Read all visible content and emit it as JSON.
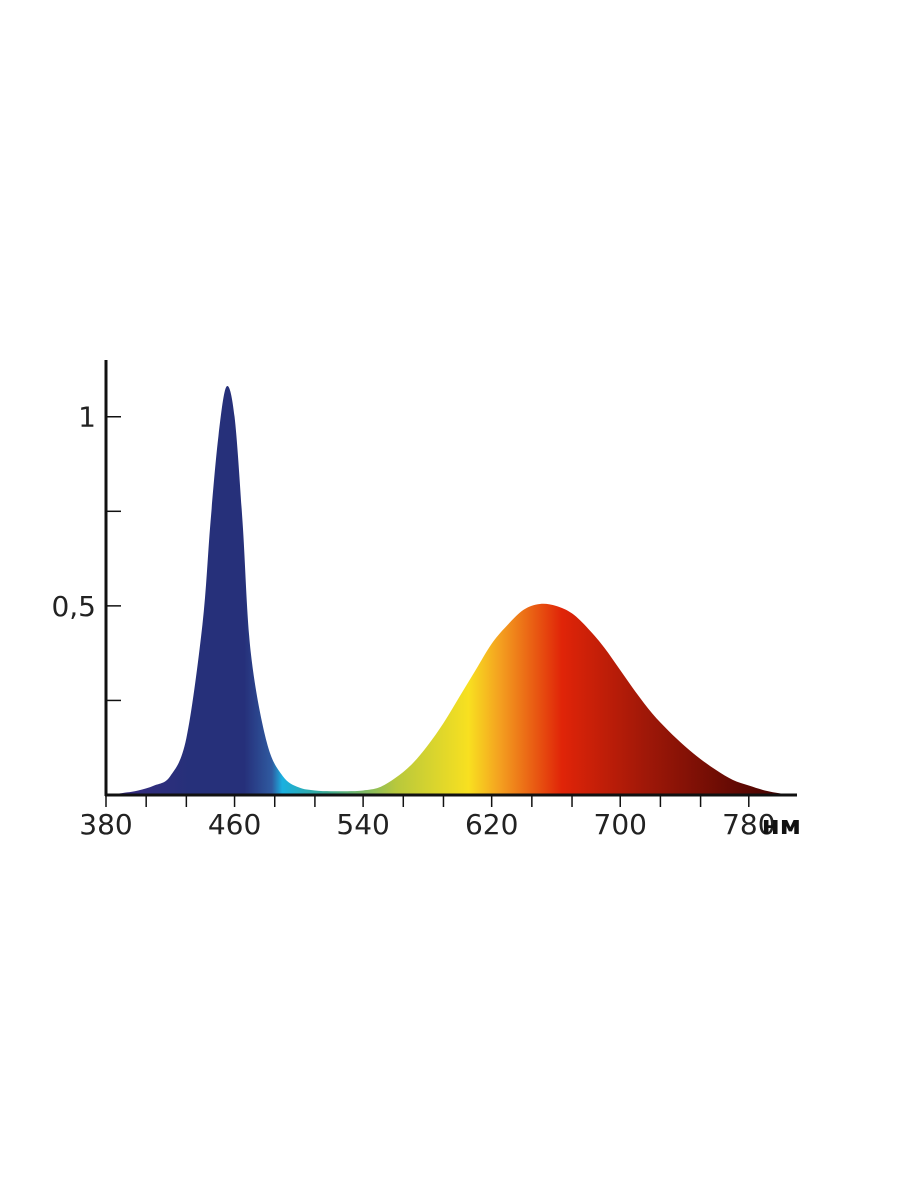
{
  "chart_data": {
    "type": "area",
    "title": "",
    "xlabel": "",
    "ylabel": "",
    "x_unit": "нм",
    "xlim": [
      380,
      810
    ],
    "ylim": [
      0,
      1.15
    ],
    "x_ticks": [
      380,
      460,
      540,
      620,
      700,
      780
    ],
    "x_minor_ticks": [
      405,
      430,
      485,
      510,
      565,
      590,
      645,
      670,
      725,
      750
    ],
    "y_tick_labels": [
      {
        "value": 0.5,
        "label": "0,5"
      },
      {
        "value": 1,
        "label": "1"
      }
    ],
    "y_minor_ticks": [
      0.25,
      0.75
    ],
    "grid": false,
    "legend": "none",
    "series": [
      {
        "x": [
          380,
          390,
          400,
          410,
          420,
          430,
          440,
          445,
          450,
          455,
          460,
          465,
          470,
          480,
          490,
          500,
          510,
          520,
          530,
          540,
          550,
          560,
          570,
          580,
          590,
          600,
          610,
          620,
          630,
          640,
          650,
          660,
          670,
          680,
          690,
          700,
          710,
          720,
          730,
          740,
          750,
          760,
          770,
          780,
          790,
          800,
          810
        ],
        "values": [
          0.0,
          0.005,
          0.012,
          0.025,
          0.05,
          0.15,
          0.45,
          0.72,
          0.95,
          1.08,
          1.0,
          0.72,
          0.38,
          0.14,
          0.05,
          0.02,
          0.012,
          0.01,
          0.01,
          0.012,
          0.02,
          0.045,
          0.08,
          0.13,
          0.19,
          0.26,
          0.33,
          0.4,
          0.45,
          0.49,
          0.505,
          0.5,
          0.48,
          0.44,
          0.39,
          0.33,
          0.27,
          0.215,
          0.17,
          0.13,
          0.095,
          0.065,
          0.04,
          0.025,
          0.012,
          0.004,
          0.0
        ]
      }
    ],
    "colors": {
      "violet": "#3a2a80",
      "deep_blue": "#26307a",
      "blue": "#2f5aa0",
      "cyan": "#1ab0e0",
      "teal": "#3aa890",
      "yellow_green": "#b8c83c",
      "yellow": "#f8e020",
      "orange": "#f4a020",
      "red": "#e02408",
      "dark_red": "#a01808",
      "maroon": "#3a0000",
      "axis": "#111111"
    }
  }
}
